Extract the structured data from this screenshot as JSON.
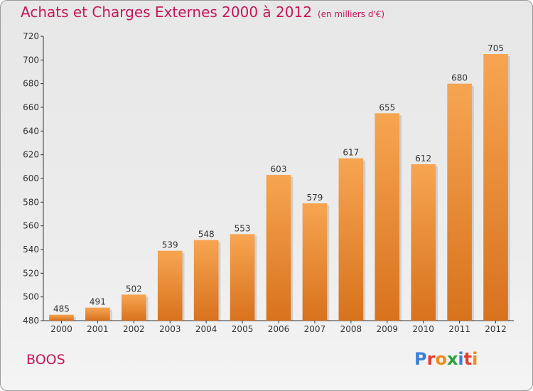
{
  "header": {
    "title": "Achats et Charges Externes 2000 à 2012",
    "unit": "(en milliers d'€)"
  },
  "footer": {
    "commune": "BOOS",
    "logo": {
      "text": "Proxiti",
      "letter_colors": [
        "#3b7fd9",
        "#e63b2e",
        "#f08c1a",
        "#2e9e3e",
        "#3b7fd9",
        "#e63b2e",
        "#f08c1a"
      ]
    }
  },
  "colors": {
    "title": "#c2185b",
    "bar_light": "#f7a552",
    "bar_dark": "#d8721d"
  },
  "chart_data": {
    "type": "bar",
    "categories": [
      "2000",
      "2001",
      "2002",
      "2003",
      "2004",
      "2005",
      "2006",
      "2007",
      "2008",
      "2009",
      "2010",
      "2011",
      "2012"
    ],
    "values": [
      485,
      491,
      502,
      539,
      548,
      553,
      603,
      579,
      617,
      655,
      612,
      680,
      705
    ],
    "ylim": [
      480,
      720
    ],
    "yticks": [
      480,
      500,
      520,
      540,
      560,
      580,
      600,
      620,
      640,
      660,
      680,
      700,
      720
    ],
    "grid": false,
    "legend": "none"
  }
}
